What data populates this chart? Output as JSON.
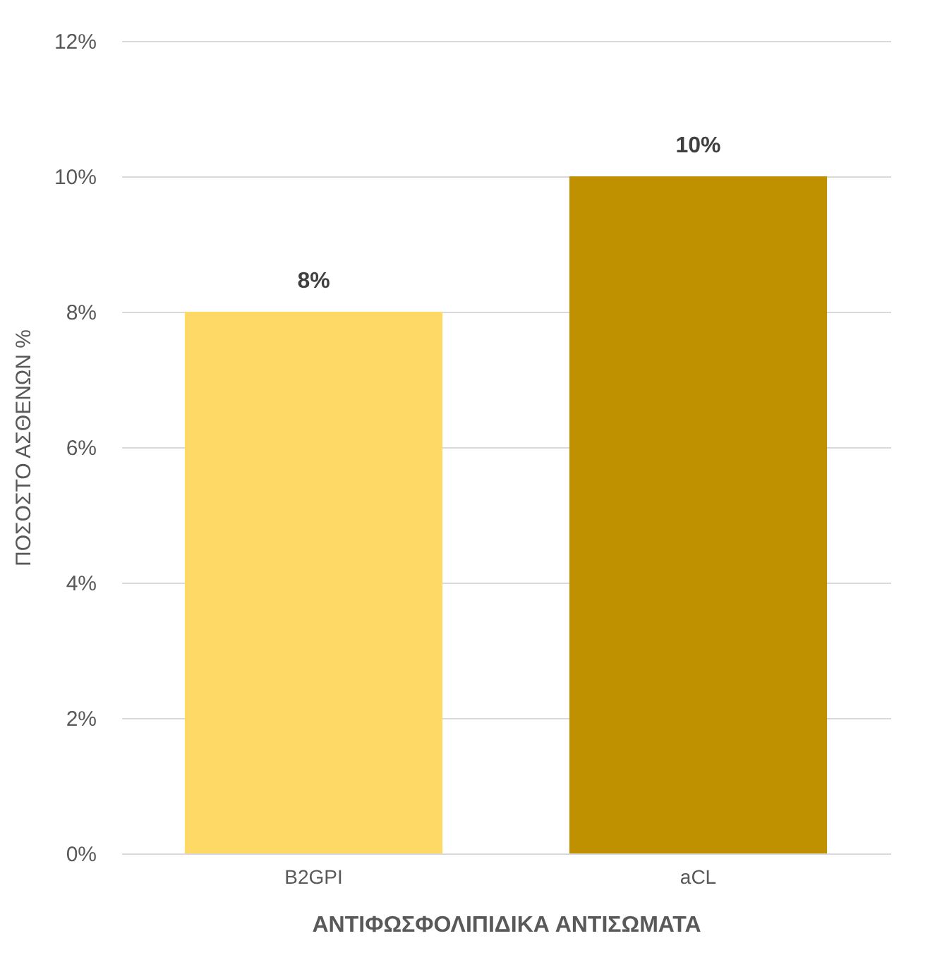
{
  "chart_data": {
    "type": "bar",
    "xlabel": "ΑΝΤΙΦΩΣΦΟΛΙΠΙΔΙΚΑ ΑΝΤΙΣΩΜΑΤΑ",
    "ylabel": "ΠΟΣΟΣΤΟ ΑΣΘΕΝΩΝ %",
    "categories": [
      "B2GPI",
      "aCL"
    ],
    "values": [
      8,
      10
    ],
    "colors": [
      "#ffd966",
      "#bf9000"
    ],
    "value_labels": [
      "8%",
      "10%"
    ],
    "ylim": [
      0,
      12
    ],
    "yticks": [
      {
        "value": 0,
        "label": "0%"
      },
      {
        "value": 2,
        "label": "2%"
      },
      {
        "value": 4,
        "label": "4%"
      },
      {
        "value": 6,
        "label": "6%"
      },
      {
        "value": 8,
        "label": "8%"
      },
      {
        "value": 10,
        "label": "10%"
      },
      {
        "value": 12,
        "label": "12%"
      }
    ],
    "grid": "y",
    "legend": false
  }
}
